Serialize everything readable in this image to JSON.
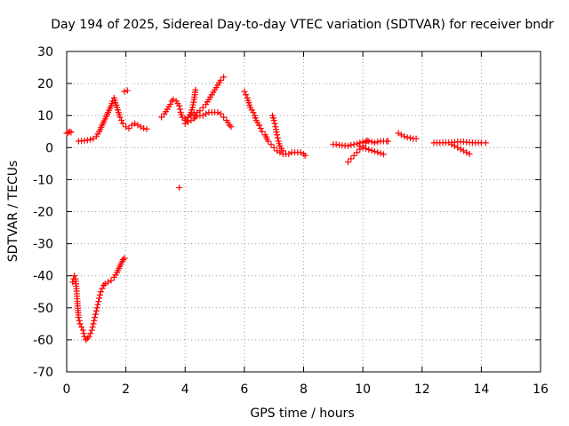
{
  "chart_data": {
    "type": "scatter",
    "title": "Day 194 of 2025, Sidereal Day-to-day VTEC variation (SDTVAR) for receiver bndr",
    "xlabel": "GPS time / hours",
    "ylabel": "SDTVAR / TECUs",
    "xlim": [
      0,
      16
    ],
    "ylim": [
      -70,
      30
    ],
    "xticks": [
      0,
      2,
      4,
      6,
      8,
      10,
      12,
      14,
      16
    ],
    "yticks": [
      30,
      20,
      10,
      0,
      -10,
      -20,
      -30,
      -40,
      -50,
      -60,
      -70
    ],
    "grid": true,
    "marker": "plus",
    "color": "#ff0000",
    "series": [
      {
        "name": "seg-a",
        "points": [
          [
            0.0,
            4.5
          ],
          [
            0.05,
            4.7
          ],
          [
            0.1,
            5.0
          ],
          [
            0.15,
            4.8
          ]
        ]
      },
      {
        "name": "seg-b",
        "points": [
          [
            0.2,
            -42
          ],
          [
            0.23,
            -41
          ],
          [
            0.26,
            -40
          ],
          [
            0.3,
            -41
          ],
          [
            0.33,
            -44
          ],
          [
            0.36,
            -48
          ],
          [
            0.4,
            -53
          ],
          [
            0.45,
            -55
          ],
          [
            0.5,
            -56
          ],
          [
            0.55,
            -57
          ],
          [
            0.6,
            -59
          ],
          [
            0.65,
            -60
          ],
          [
            0.7,
            -59.5
          ],
          [
            0.75,
            -59
          ],
          [
            0.8,
            -58
          ],
          [
            0.85,
            -57
          ],
          [
            0.9,
            -55
          ],
          [
            0.95,
            -53
          ],
          [
            1.0,
            -51
          ],
          [
            1.05,
            -49
          ],
          [
            1.1,
            -47
          ],
          [
            1.15,
            -45
          ],
          [
            1.2,
            -44
          ],
          [
            1.25,
            -43
          ],
          [
            1.3,
            -42.5
          ],
          [
            1.4,
            -42
          ],
          [
            1.5,
            -41.5
          ],
          [
            1.6,
            -40.5
          ],
          [
            1.7,
            -39
          ],
          [
            1.8,
            -37
          ],
          [
            1.9,
            -35
          ],
          [
            1.95,
            -34.5
          ]
        ]
      },
      {
        "name": "seg-c",
        "points": [
          [
            0.4,
            2.0
          ],
          [
            0.5,
            2.1
          ],
          [
            0.6,
            2.2
          ],
          [
            0.7,
            2.3
          ],
          [
            0.8,
            2.5
          ],
          [
            0.9,
            2.8
          ],
          [
            1.0,
            3.5
          ],
          [
            1.1,
            5.0
          ],
          [
            1.2,
            7.0
          ],
          [
            1.3,
            9.0
          ],
          [
            1.4,
            11.0
          ],
          [
            1.5,
            13.0
          ],
          [
            1.55,
            14.5
          ],
          [
            1.6,
            15.5
          ],
          [
            1.65,
            14.0
          ],
          [
            1.7,
            12.5
          ],
          [
            1.75,
            11.0
          ],
          [
            1.8,
            9.5
          ],
          [
            1.85,
            8.5
          ],
          [
            1.9,
            7.5
          ],
          [
            2.0,
            6.5
          ],
          [
            2.1,
            6.0
          ],
          [
            2.2,
            7.0
          ],
          [
            2.3,
            7.5
          ],
          [
            2.4,
            7.0
          ],
          [
            2.5,
            6.5
          ],
          [
            2.6,
            6.0
          ],
          [
            2.7,
            5.8
          ]
        ]
      },
      {
        "name": "seg-d",
        "points": [
          [
            1.95,
            17.5
          ],
          [
            2.05,
            17.8
          ]
        ]
      },
      {
        "name": "seg-e",
        "points": [
          [
            3.2,
            9.5
          ],
          [
            3.3,
            10.5
          ],
          [
            3.4,
            12.0
          ],
          [
            3.5,
            13.5
          ],
          [
            3.55,
            14.5
          ],
          [
            3.6,
            15.0
          ],
          [
            3.7,
            14.5
          ],
          [
            3.8,
            13.0
          ],
          [
            3.85,
            11.0
          ],
          [
            3.9,
            9.5
          ],
          [
            4.0,
            8.5
          ],
          [
            4.1,
            8.0
          ],
          [
            4.2,
            8.5
          ],
          [
            4.3,
            9.0
          ],
          [
            4.35,
            9.5
          ],
          [
            4.4,
            10.0
          ],
          [
            4.5,
            10.0
          ],
          [
            4.6,
            10.0
          ],
          [
            4.7,
            10.5
          ],
          [
            4.8,
            11.0
          ],
          [
            4.9,
            11.0
          ],
          [
            5.0,
            11.0
          ],
          [
            5.1,
            11.0
          ],
          [
            5.2,
            10.5
          ],
          [
            5.3,
            9.5
          ],
          [
            5.4,
            8.5
          ],
          [
            5.5,
            7.0
          ],
          [
            5.55,
            6.5
          ]
        ]
      },
      {
        "name": "seg-f",
        "points": [
          [
            4.0,
            9.0
          ],
          [
            4.1,
            9.5
          ],
          [
            4.2,
            10.0
          ],
          [
            4.3,
            10.5
          ],
          [
            4.4,
            11.0
          ],
          [
            4.5,
            11.5
          ],
          [
            4.6,
            12.5
          ],
          [
            4.7,
            13.5
          ],
          [
            4.8,
            15.0
          ],
          [
            4.9,
            16.5
          ],
          [
            5.0,
            18.0
          ],
          [
            5.1,
            19.5
          ],
          [
            5.2,
            21.0
          ],
          [
            5.3,
            22.0
          ]
        ]
      },
      {
        "name": "seg-g",
        "points": [
          [
            4.0,
            7.5
          ],
          [
            4.05,
            8.5
          ],
          [
            4.1,
            9.5
          ],
          [
            4.2,
            11.0
          ],
          [
            4.25,
            12.5
          ],
          [
            4.3,
            15.0
          ],
          [
            4.35,
            18.0
          ]
        ]
      },
      {
        "name": "seg-h",
        "points": [
          [
            3.8,
            -12.5
          ]
        ]
      },
      {
        "name": "seg-i",
        "points": [
          [
            6.0,
            17.5
          ],
          [
            6.05,
            16.5
          ],
          [
            6.1,
            15.5
          ],
          [
            6.15,
            14.0
          ],
          [
            6.2,
            12.5
          ],
          [
            6.3,
            11.0
          ],
          [
            6.35,
            10.0
          ],
          [
            6.4,
            8.5
          ],
          [
            6.5,
            7.0
          ],
          [
            6.55,
            6.0
          ],
          [
            6.6,
            5.0
          ],
          [
            6.7,
            4.0
          ],
          [
            6.8,
            2.0
          ],
          [
            6.9,
            1.0
          ],
          [
            7.0,
            0.0
          ],
          [
            7.1,
            -1.0
          ],
          [
            7.2,
            -1.5
          ],
          [
            7.3,
            -2.0
          ],
          [
            7.4,
            -2.0
          ],
          [
            7.5,
            -2.0
          ],
          [
            7.6,
            -1.5
          ],
          [
            7.7,
            -1.5
          ],
          [
            7.8,
            -1.5
          ],
          [
            7.9,
            -1.5
          ],
          [
            8.0,
            -2.0
          ],
          [
            8.05,
            -2.5
          ]
        ]
      },
      {
        "name": "seg-j",
        "points": [
          [
            6.95,
            10.0
          ],
          [
            7.0,
            8.5
          ],
          [
            7.05,
            6.5
          ],
          [
            7.1,
            4.0
          ],
          [
            7.15,
            2.0
          ],
          [
            7.2,
            0.5
          ],
          [
            7.3,
            -1.0
          ]
        ]
      },
      {
        "name": "seg-k",
        "points": [
          [
            9.0,
            1.0
          ],
          [
            9.1,
            1.0
          ],
          [
            9.2,
            0.8
          ],
          [
            9.3,
            0.7
          ],
          [
            9.4,
            0.6
          ],
          [
            9.5,
            0.5
          ],
          [
            9.6,
            0.8
          ],
          [
            9.7,
            1.0
          ],
          [
            9.8,
            1.2
          ],
          [
            9.9,
            1.5
          ],
          [
            10.0,
            1.8
          ],
          [
            10.1,
            2.0
          ],
          [
            10.2,
            2.0
          ],
          [
            10.3,
            1.8
          ],
          [
            10.4,
            1.5
          ],
          [
            10.5,
            1.8
          ],
          [
            10.6,
            2.0
          ],
          [
            10.7,
            2.0
          ],
          [
            10.8,
            2.0
          ],
          [
            10.85,
            2.0
          ]
        ]
      },
      {
        "name": "seg-l",
        "points": [
          [
            9.5,
            -4.5
          ],
          [
            9.6,
            -3.5
          ],
          [
            9.7,
            -2.5
          ],
          [
            9.8,
            -1.5
          ],
          [
            9.9,
            -0.5
          ],
          [
            10.0,
            0.5
          ],
          [
            10.1,
            1.5
          ],
          [
            10.15,
            2.2
          ]
        ]
      },
      {
        "name": "seg-m",
        "points": [
          [
            9.9,
            0.5
          ],
          [
            10.0,
            0.0
          ],
          [
            10.1,
            -0.3
          ],
          [
            10.2,
            -0.6
          ],
          [
            10.3,
            -0.9
          ],
          [
            10.4,
            -1.2
          ],
          [
            10.5,
            -1.5
          ],
          [
            10.6,
            -1.8
          ],
          [
            10.7,
            -2.1
          ]
        ]
      },
      {
        "name": "seg-n",
        "points": [
          [
            11.2,
            4.5
          ],
          [
            11.3,
            4.0
          ],
          [
            11.4,
            3.5
          ],
          [
            11.5,
            3.2
          ],
          [
            11.6,
            3.0
          ],
          [
            11.7,
            2.8
          ],
          [
            11.8,
            2.8
          ]
        ]
      },
      {
        "name": "seg-o",
        "points": [
          [
            12.4,
            1.5
          ],
          [
            12.6,
            1.5
          ],
          [
            12.8,
            1.5
          ],
          [
            13.0,
            1.6
          ],
          [
            13.2,
            1.8
          ],
          [
            13.4,
            1.8
          ],
          [
            13.6,
            1.6
          ],
          [
            13.8,
            1.5
          ],
          [
            14.0,
            1.5
          ],
          [
            14.15,
            1.5
          ]
        ]
      },
      {
        "name": "seg-p",
        "points": [
          [
            13.0,
            1.0
          ],
          [
            13.1,
            0.5
          ],
          [
            13.2,
            0.0
          ],
          [
            13.3,
            -0.5
          ],
          [
            13.4,
            -1.0
          ],
          [
            13.5,
            -1.5
          ],
          [
            13.6,
            -2.0
          ]
        ]
      }
    ]
  }
}
